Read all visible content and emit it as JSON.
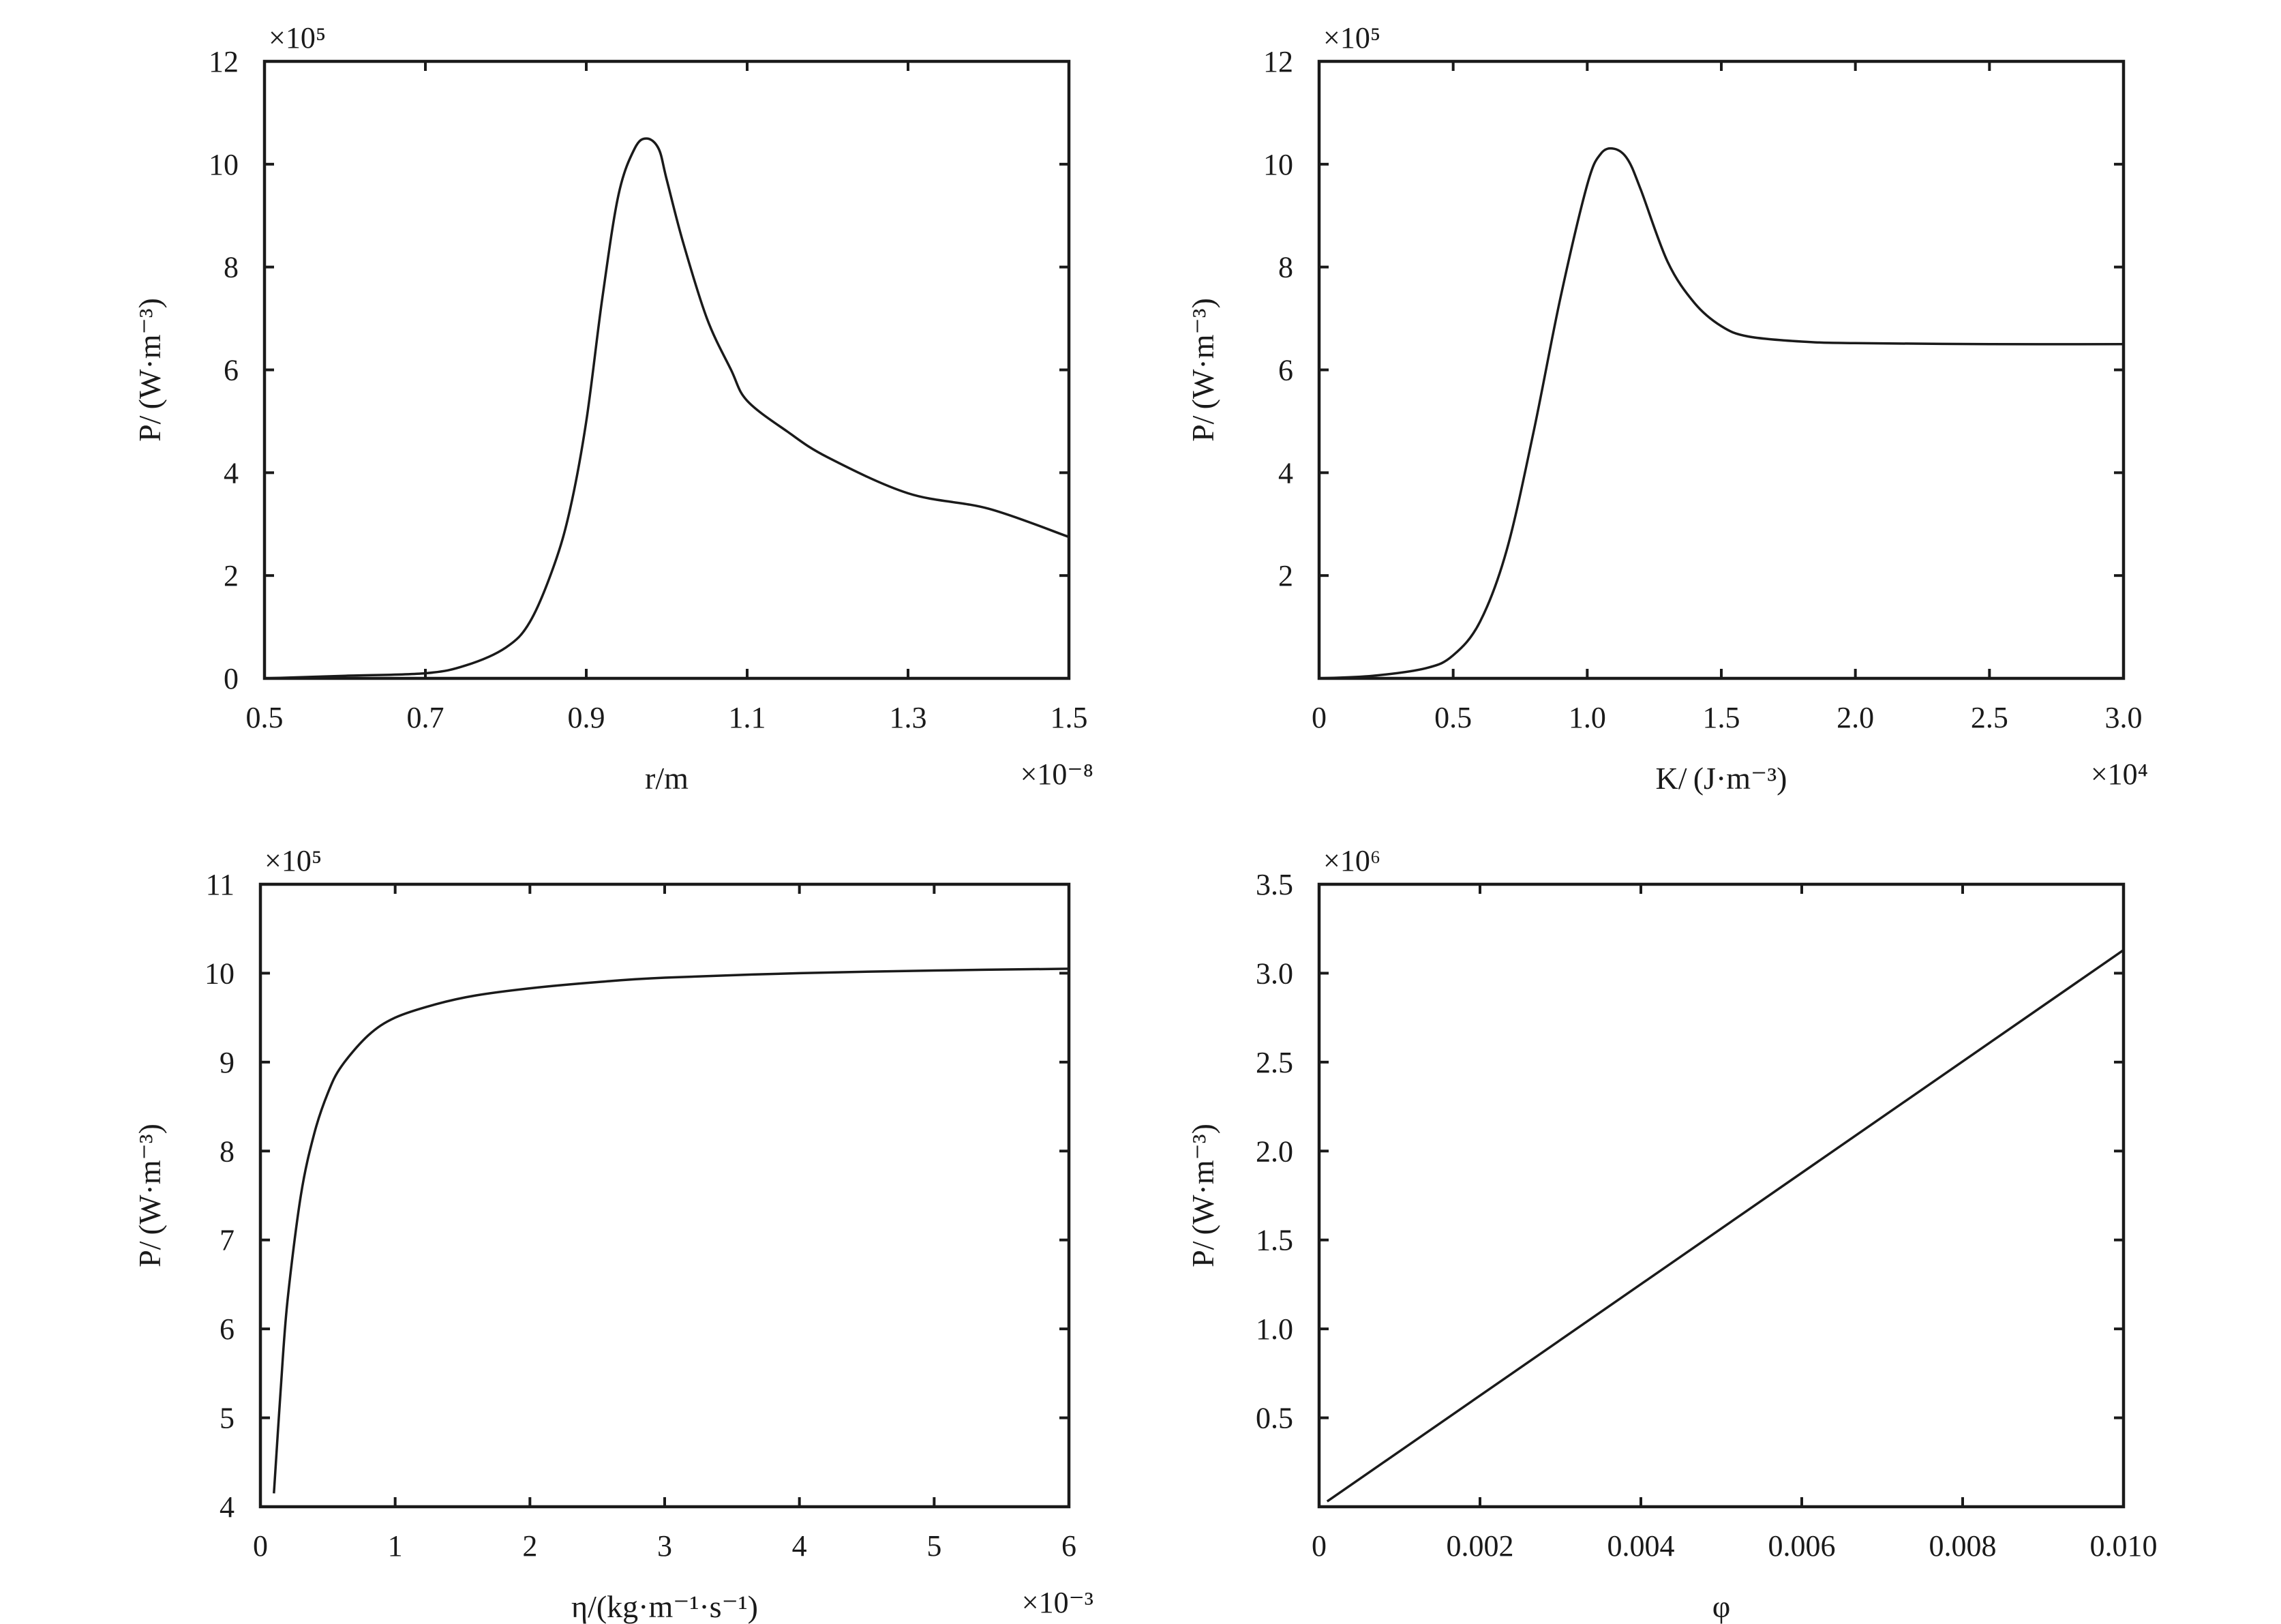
{
  "chart_data": [
    {
      "type": "line",
      "xlabel": "r/m",
      "ylabel": "P/ (W·m⁻³)",
      "x_multiplier": "×10⁻⁸",
      "y_multiplier": "×10⁵",
      "xlim": [
        0.5,
        1.5
      ],
      "ylim": [
        0,
        12
      ],
      "x_ticks": [
        0.5,
        0.7,
        0.9,
        1.1,
        1.3,
        1.5
      ],
      "x_tick_labels": [
        "0.5",
        "0.7",
        "0.9",
        "1.1",
        "1.3",
        "1.5"
      ],
      "y_ticks": [
        0,
        2,
        4,
        6,
        8,
        10,
        12
      ],
      "y_tick_labels": [
        "0",
        "2",
        "4",
        "6",
        "8",
        "10",
        "12"
      ],
      "series": [
        {
          "x": [
            0.5,
            0.6,
            0.7,
            0.75,
            0.8,
            0.83,
            0.86,
            0.88,
            0.9,
            0.92,
            0.94,
            0.96,
            0.975,
            0.99,
            1.0,
            1.02,
            1.05,
            1.08,
            1.1,
            1.15,
            1.2,
            1.3,
            1.4,
            1.5
          ],
          "y": [
            0.0,
            0.05,
            0.1,
            0.25,
            0.6,
            1.1,
            2.2,
            3.3,
            5.0,
            7.4,
            9.4,
            10.3,
            10.5,
            10.3,
            9.7,
            8.5,
            7.0,
            6.0,
            5.4,
            4.8,
            4.3,
            3.6,
            3.3,
            2.75
          ]
        }
      ]
    },
    {
      "type": "line",
      "xlabel": "K/ (J·m⁻³)",
      "ylabel": "P/ (W·m⁻³)",
      "x_multiplier": "×10⁴",
      "y_multiplier": "×10⁵",
      "xlim": [
        0,
        3.0
      ],
      "ylim": [
        0,
        12
      ],
      "x_ticks": [
        0,
        0.5,
        1.0,
        1.5,
        2.0,
        2.5,
        3.0
      ],
      "x_tick_labels": [
        "0",
        "0.5",
        "1.0",
        "1.5",
        "2.0",
        "2.5",
        "3.0"
      ],
      "y_ticks": [
        2,
        4,
        6,
        8,
        10,
        12
      ],
      "y_tick_labels": [
        "2",
        "4",
        "6",
        "8",
        "10",
        "12"
      ],
      "series": [
        {
          "x": [
            0.0,
            0.2,
            0.4,
            0.5,
            0.6,
            0.7,
            0.8,
            0.9,
            1.0,
            1.05,
            1.1,
            1.15,
            1.2,
            1.3,
            1.4,
            1.5,
            1.6,
            1.8,
            2.0,
            2.5,
            3.0
          ],
          "y": [
            0.0,
            0.05,
            0.2,
            0.45,
            1.1,
            2.5,
            4.8,
            7.4,
            9.6,
            10.2,
            10.3,
            10.1,
            9.5,
            8.1,
            7.3,
            6.85,
            6.65,
            6.55,
            6.52,
            6.5,
            6.5
          ]
        }
      ]
    },
    {
      "type": "line",
      "xlabel": "η/(kg·m⁻¹·s⁻¹)",
      "ylabel": "P/ (W·m⁻³)",
      "x_multiplier": "×10⁻³",
      "y_multiplier": "×10⁵",
      "xlim": [
        0,
        6
      ],
      "ylim": [
        4,
        11
      ],
      "x_ticks": [
        0,
        1,
        2,
        3,
        4,
        5,
        6
      ],
      "x_tick_labels": [
        "0",
        "1",
        "2",
        "3",
        "4",
        "5",
        "6"
      ],
      "y_ticks": [
        4,
        5,
        6,
        7,
        8,
        9,
        10,
        11
      ],
      "y_tick_labels": [
        "4",
        "5",
        "6",
        "7",
        "8",
        "9",
        "10",
        "11"
      ],
      "series": [
        {
          "x": [
            0.1,
            0.15,
            0.2,
            0.3,
            0.4,
            0.5,
            0.6,
            0.8,
            1.0,
            1.3,
            1.6,
            2.0,
            2.5,
            3.0,
            4.0,
            5.0,
            6.0
          ],
          "y": [
            4.15,
            5.3,
            6.3,
            7.5,
            8.2,
            8.65,
            8.95,
            9.3,
            9.5,
            9.65,
            9.75,
            9.83,
            9.9,
            9.95,
            10.0,
            10.03,
            10.05
          ]
        }
      ]
    },
    {
      "type": "line",
      "xlabel": "φ",
      "ylabel": "P/ (W·m⁻³)",
      "x_multiplier": "",
      "y_multiplier": "×10⁶",
      "xlim": [
        0,
        0.01
      ],
      "ylim": [
        0,
        3.5
      ],
      "x_ticks": [
        0,
        0.002,
        0.004,
        0.006,
        0.008,
        0.01
      ],
      "x_tick_labels": [
        "0",
        "0.002",
        "0.004",
        "0.006",
        "0.008",
        "0.010"
      ],
      "y_ticks": [
        0.5,
        1.0,
        1.5,
        2.0,
        2.5,
        3.0,
        3.5
      ],
      "y_tick_labels": [
        "0.5",
        "1.0",
        "1.5",
        "2.0",
        "2.5",
        "3.0",
        "3.5"
      ],
      "series": [
        {
          "x": [
            0.0001,
            0.01
          ],
          "y": [
            0.03,
            3.13
          ]
        }
      ]
    }
  ]
}
